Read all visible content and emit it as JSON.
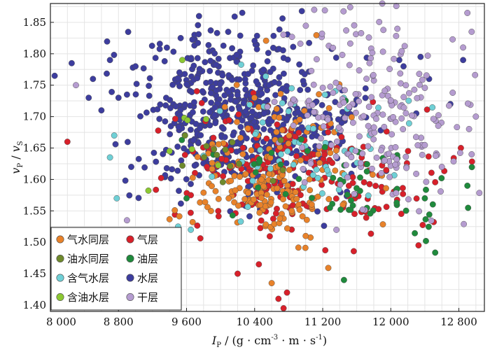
{
  "chart_data": {
    "type": "scatter",
    "xlabel_main": "I",
    "xlabel_sub": "P",
    "xlabel_unit_a": " / (g · cm",
    "xlabel_sup1": "-3",
    "xlabel_unit_b": " · m · s",
    "xlabel_sup2": "-1",
    "xlabel_unit_c": ")",
    "ylabel_v1": "v",
    "ylabel_sub1": "P",
    "ylabel_slash": " / ",
    "ylabel_v2": "v",
    "ylabel_sub2": "S",
    "xlim": [
      8000,
      13100
    ],
    "ylim": [
      1.39,
      1.88
    ],
    "x_ticks": [
      8000,
      8800,
      9600,
      10400,
      11200,
      12000,
      12800
    ],
    "x_tick_labels": [
      "8 000",
      "8 800",
      "9 600",
      "10 400",
      "11 200",
      "12 000",
      "12 800"
    ],
    "y_ticks": [
      1.4,
      1.45,
      1.5,
      1.55,
      1.6,
      1.65,
      1.7,
      1.75,
      1.8,
      1.85
    ],
    "y_tick_labels": [
      "1.40",
      "1.45",
      "1.50",
      "1.55",
      "1.60",
      "1.65",
      "1.70",
      "1.75",
      "1.80",
      "1.85"
    ],
    "grid": true,
    "legend_position": "bottom-left",
    "series": [
      {
        "name": "气水同层",
        "color": "#e8822a",
        "clusters": [
          {
            "cx": 10500,
            "cy": 1.59,
            "sx": 450,
            "sy": 0.045,
            "n": 150
          },
          {
            "cx": 10900,
            "cy": 1.66,
            "sx": 450,
            "sy": 0.06,
            "n": 40
          }
        ],
        "points": [
          [
            10600,
            1.435
          ],
          [
            11000,
            1.51
          ]
        ]
      },
      {
        "name": "气层",
        "color": "#d8202a",
        "clusters": [
          {
            "cx": 10700,
            "cy": 1.61,
            "sx": 700,
            "sy": 0.05,
            "n": 190
          },
          {
            "cx": 11800,
            "cy": 1.58,
            "sx": 450,
            "sy": 0.05,
            "n": 30
          }
        ],
        "points": [
          [
            8200,
            1.66
          ],
          [
            10200,
            1.45
          ],
          [
            10450,
            1.465
          ],
          [
            10680,
            1.41
          ],
          [
            10780,
            1.42
          ],
          [
            10740,
            1.395
          ],
          [
            9650,
            1.575
          ]
        ]
      },
      {
        "name": "油水同层",
        "color": "#6f8a2c",
        "clusters": [
          {
            "cx": 10300,
            "cy": 1.64,
            "sx": 350,
            "sy": 0.03,
            "n": 14
          }
        ],
        "points": []
      },
      {
        "name": "油层",
        "color": "#1f8a3c",
        "clusters": [
          {
            "cx": 11900,
            "cy": 1.57,
            "sx": 500,
            "sy": 0.04,
            "n": 40
          },
          {
            "cx": 10800,
            "cy": 1.62,
            "sx": 400,
            "sy": 0.04,
            "n": 20
          }
        ],
        "points": [
          [
            12900,
            1.59
          ],
          [
            12400,
            1.57
          ],
          [
            11450,
            1.44
          ],
          [
            9600,
            1.57
          ]
        ]
      },
      {
        "name": "含气水层",
        "color": "#6fd0d6",
        "clusters": [
          {
            "cx": 11100,
            "cy": 1.66,
            "sx": 650,
            "sy": 0.05,
            "n": 60
          }
        ],
        "points": [
          [
            8750,
            1.67
          ],
          [
            8700,
            1.635
          ],
          [
            8780,
            1.57
          ],
          [
            9500,
            1.525
          ],
          [
            9650,
            1.52
          ]
        ]
      },
      {
        "name": "水层",
        "color": "#3d3d9e",
        "clusters": [
          {
            "cx": 10100,
            "cy": 1.71,
            "sx": 550,
            "sy": 0.065,
            "n": 520
          },
          {
            "cx": 10950,
            "cy": 1.67,
            "sx": 400,
            "sy": 0.05,
            "n": 90
          }
        ],
        "points": [
          [
            8050,
            1.765
          ],
          [
            8250,
            1.785
          ],
          [
            8450,
            1.73
          ],
          [
            8500,
            1.76
          ],
          [
            8600,
            1.71
          ],
          [
            8700,
            1.79
          ],
          [
            8800,
            1.73
          ],
          [
            8900,
            1.735
          ],
          [
            8950,
            1.62
          ],
          [
            9000,
            1.78
          ],
          [
            12100,
            1.79
          ],
          [
            12350,
            1.795
          ],
          [
            12150,
            1.78
          ],
          [
            12450,
            1.76
          ],
          [
            12850,
            1.79
          ],
          [
            12300,
            1.705
          ],
          [
            12700,
            1.72
          ]
        ]
      },
      {
        "name": "含油水层",
        "color": "#8cc832",
        "clusters": [
          {
            "cx": 9700,
            "cy": 1.66,
            "sx": 200,
            "sy": 0.06,
            "n": 6
          }
        ],
        "points": [
          [
            9400,
            1.645
          ],
          [
            9550,
            1.79
          ]
        ]
      },
      {
        "name": "干层",
        "color": "#b59cd0",
        "clusters": [
          {
            "cx": 11900,
            "cy": 1.69,
            "sx": 550,
            "sy": 0.075,
            "n": 190
          },
          {
            "cx": 11400,
            "cy": 1.8,
            "sx": 400,
            "sy": 0.05,
            "n": 30
          }
        ],
        "points": [
          [
            8300,
            1.75
          ],
          [
            8900,
            1.535
          ],
          [
            11900,
            1.88
          ],
          [
            12900,
            1.865
          ],
          [
            12950,
            1.835
          ],
          [
            12850,
            1.81
          ],
          [
            13000,
            1.7
          ],
          [
            12950,
            1.64
          ],
          [
            12600,
            1.62
          ],
          [
            11100,
            1.87
          ]
        ]
      }
    ]
  }
}
